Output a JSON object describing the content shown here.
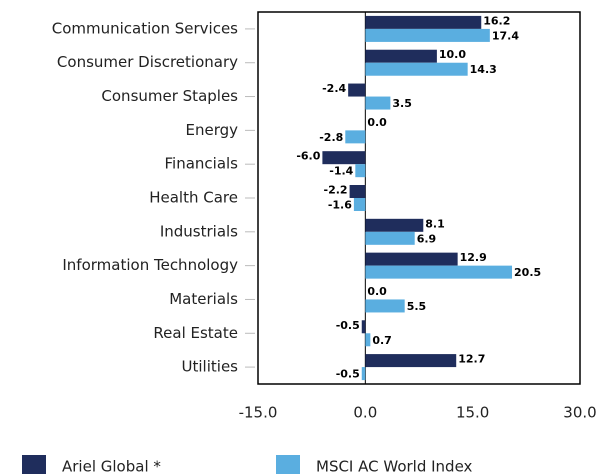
{
  "chart_data": {
    "type": "bar",
    "orientation": "horizontal",
    "categories": [
      "Communication Services",
      "Consumer Discretionary",
      "Consumer Staples",
      "Energy",
      "Financials",
      "Health Care",
      "Industrials",
      "Information Technology",
      "Materials",
      "Real Estate",
      "Utilities"
    ],
    "series": [
      {
        "name": "Ariel Global *",
        "color": "#1f2d5c",
        "values": [
          16.2,
          10.0,
          -2.4,
          0.0,
          -6.0,
          -2.2,
          8.1,
          12.9,
          0.0,
          -0.5,
          12.7
        ],
        "value_labels": [
          "16.2",
          "10.0",
          "-2.4",
          "0.0",
          "-6.0",
          "-2.2",
          "8.1",
          "12.9",
          "0.0",
          "-0.5",
          "12.7"
        ]
      },
      {
        "name": "MSCI AC World Index",
        "color": "#5aaee0",
        "values": [
          17.4,
          14.3,
          3.5,
          -2.8,
          -1.4,
          -1.6,
          6.9,
          20.5,
          5.5,
          0.7,
          -0.5
        ],
        "value_labels": [
          "17.4",
          "14.3",
          "3.5",
          "-2.8",
          "-1.4",
          "-1.6",
          "6.9",
          "20.5",
          "5.5",
          "0.7",
          "-0.5"
        ]
      }
    ],
    "xlim": [
      -15,
      30
    ],
    "xticks": [
      {
        "value": -15,
        "label": "-15.0"
      },
      {
        "value": 0,
        "label": "0.0"
      },
      {
        "value": 15,
        "label": "15.0"
      },
      {
        "value": 30,
        "label": "30.0"
      }
    ]
  }
}
